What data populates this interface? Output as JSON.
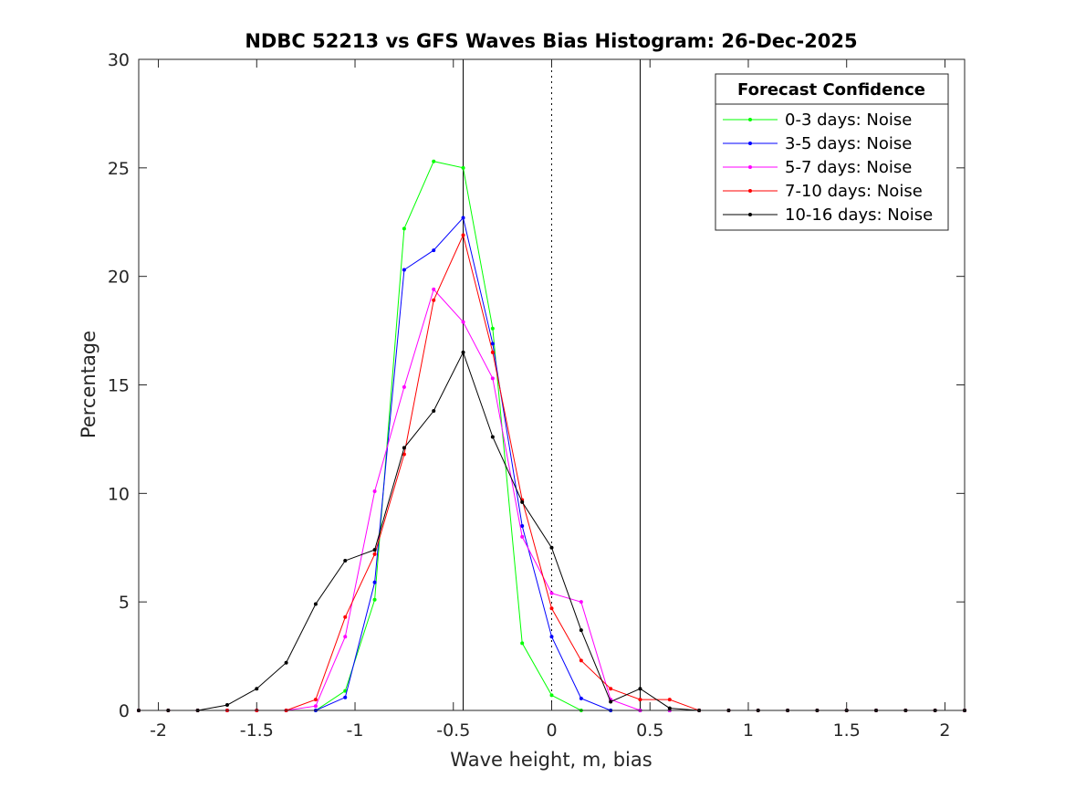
{
  "chart_data": {
    "type": "line",
    "title": "NDBC 52213 vs GFS Waves Bias Histogram: 26-Dec-2025",
    "xlabel": "Wave height, m, bias",
    "ylabel": "Percentage",
    "xlim": [
      -2.1,
      2.1
    ],
    "ylim": [
      0,
      30
    ],
    "xticks": [
      -2,
      -1.5,
      -1,
      -0.5,
      0,
      0.5,
      1,
      1.5,
      2
    ],
    "xtick_labels": [
      "-2",
      "-1.5",
      "-1",
      "-0.5",
      "0",
      "0.5",
      "1",
      "1.5",
      "2"
    ],
    "yticks": [
      0,
      5,
      10,
      15,
      20,
      25,
      30
    ],
    "ytick_labels": [
      "0",
      "5",
      "10",
      "15",
      "20",
      "25",
      "30"
    ],
    "grid": false,
    "legend": {
      "title": "Forecast Confidence",
      "position": "top-right"
    },
    "vertical_lines": [
      {
        "x": -0.45,
        "style": "solid"
      },
      {
        "x": 0,
        "style": "dotted"
      },
      {
        "x": 0.45,
        "style": "solid"
      }
    ],
    "x": [
      -2.1,
      -1.95,
      -1.8,
      -1.65,
      -1.5,
      -1.35,
      -1.2,
      -1.05,
      -0.9,
      -0.75,
      -0.6,
      -0.45,
      -0.3,
      -0.15,
      0,
      0.15,
      0.3,
      0.45,
      0.6,
      0.75,
      0.9,
      1.05,
      1.2,
      1.35,
      1.5,
      1.65,
      1.8,
      1.95,
      2.1
    ],
    "series": [
      {
        "name": "0-3 days: Noise",
        "color": "#00ff00",
        "values": [
          0,
          0,
          0,
          0,
          0,
          0,
          0,
          0.9,
          5.1,
          22.2,
          25.3,
          25.0,
          17.6,
          3.1,
          0.7,
          0,
          0,
          0,
          0,
          0,
          0,
          0,
          0,
          0,
          0,
          0,
          0,
          0,
          0
        ]
      },
      {
        "name": "3-5 days: Noise",
        "color": "#0000ff",
        "values": [
          0,
          0,
          0,
          0,
          0,
          0,
          0,
          0.6,
          5.9,
          20.3,
          21.2,
          22.7,
          16.9,
          8.5,
          3.4,
          0.55,
          0,
          0,
          0,
          0,
          0,
          0,
          0,
          0,
          0,
          0,
          0,
          0,
          0
        ]
      },
      {
        "name": "5-7 days: Noise",
        "color": "#ff00ff",
        "values": [
          0,
          0,
          0,
          0,
          0,
          0,
          0.2,
          3.4,
          10.1,
          14.9,
          19.4,
          17.9,
          15.3,
          8.0,
          5.4,
          5.0,
          0.5,
          0,
          0,
          0,
          0,
          0,
          0,
          0,
          0,
          0,
          0,
          0,
          0
        ]
      },
      {
        "name": "7-10 days: Noise",
        "color": "#ff0000",
        "values": [
          0,
          0,
          0,
          0,
          0,
          0,
          0.5,
          4.3,
          7.2,
          11.8,
          18.9,
          21.9,
          16.5,
          9.7,
          4.7,
          2.3,
          1.0,
          0.5,
          0.5,
          0,
          0,
          0,
          0,
          0,
          0,
          0,
          0,
          0,
          0
        ]
      },
      {
        "name": "10-16 days: Noise",
        "color": "#000000",
        "values": [
          0,
          0,
          0,
          0.25,
          1.0,
          2.2,
          4.9,
          6.9,
          7.4,
          12.1,
          13.8,
          16.5,
          12.6,
          9.6,
          7.5,
          3.7,
          0.4,
          1.0,
          0.1,
          0,
          0,
          0,
          0,
          0,
          0,
          0,
          0,
          0,
          0
        ]
      }
    ]
  }
}
